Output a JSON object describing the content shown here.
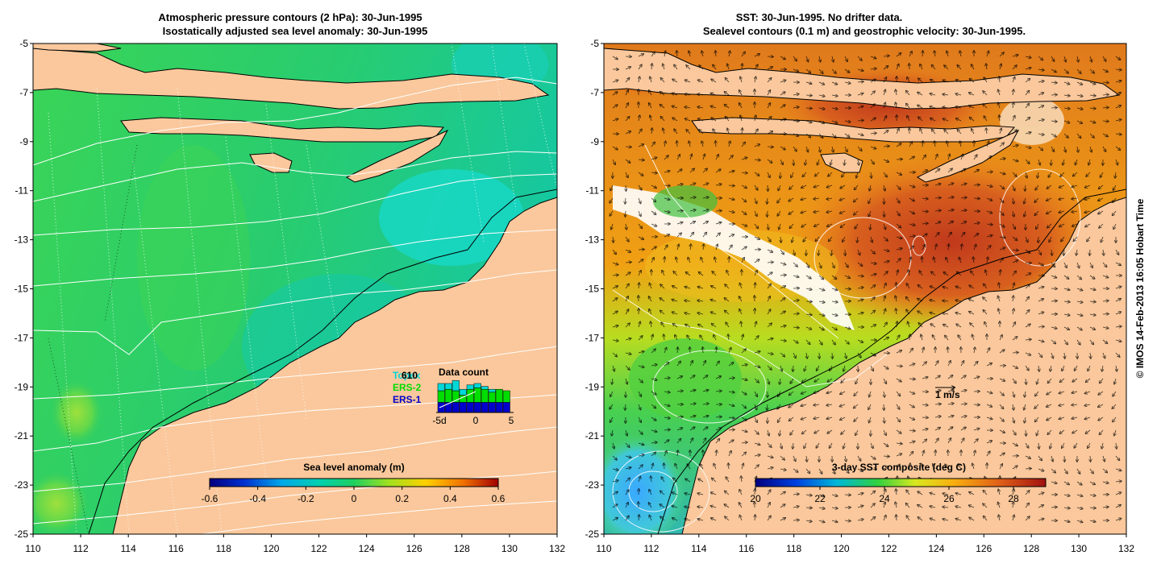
{
  "left_panel": {
    "title_line1": "Atmospheric pressure contours (2 hPa): 30-Jun-1995",
    "title_line2": "Isostatically adjusted sea level anomaly: 30-Jun-1995",
    "colorbar": {
      "title": "Sea level anomaly (m)",
      "ticks": [
        "-0.6",
        "-0.4",
        "-0.2",
        "0",
        "0.2",
        "0.4",
        "0.6"
      ],
      "range": [
        -0.6,
        0.6
      ]
    },
    "inset": {
      "title": "Data count",
      "count": "610",
      "legend": [
        {
          "name": "TOPEX",
          "label": "Topex",
          "color": "#00d8d8"
        },
        {
          "name": "ERS-2",
          "label": "ERS-2",
          "color": "#00dd00"
        },
        {
          "name": "ERS-1",
          "label": "ERS-1",
          "color": "#0000cc"
        }
      ],
      "x_ticks": [
        "-5d",
        "0",
        "5"
      ],
      "bars": [
        {
          "day": -5,
          "ers1": 0.35,
          "ers2": 0.4,
          "topex": 0.25
        },
        {
          "day": -4,
          "ers1": 0.35,
          "ers2": 0.45,
          "topex": 0.2
        },
        {
          "day": -3,
          "ers1": 0.35,
          "ers2": 0.4,
          "topex": 0.35
        },
        {
          "day": -2,
          "ers1": 0.35,
          "ers2": 0.25,
          "topex": 0.2
        },
        {
          "day": -1,
          "ers1": 0.35,
          "ers2": 0.45,
          "topex": 0.15
        },
        {
          "day": 0,
          "ers1": 0.35,
          "ers2": 0.5,
          "topex": 0.15
        },
        {
          "day": 1,
          "ers1": 0.35,
          "ers2": 0.45,
          "topex": 0.1
        },
        {
          "day": 2,
          "ers1": 0.35,
          "ers2": 0.35,
          "topex": 0.1
        },
        {
          "day": 3,
          "ers1": 0.35,
          "ers2": 0.45,
          "topex": 0.0
        },
        {
          "day": 4,
          "ers1": 0.35,
          "ers2": 0.4,
          "topex": 0.0
        }
      ]
    }
  },
  "right_panel": {
    "title_line1": "SST: 30-Jun-1995. No drifter data.",
    "title_line2": "Sealevel contours (0.1 m) and geostrophic velocity: 30-Jun-1995.",
    "colorbar": {
      "title": "3-day SST composite (deg C)",
      "ticks": [
        "20",
        "22",
        "24",
        "26",
        "28"
      ],
      "range": [
        20,
        29
      ]
    },
    "velocity_scale_label": "1 m/s"
  },
  "axes": {
    "lon_range": [
      110,
      132
    ],
    "lat_range": [
      -25,
      -5
    ],
    "x_ticks": [
      "110",
      "112",
      "114",
      "116",
      "118",
      "120",
      "122",
      "124",
      "126",
      "128",
      "130",
      "132"
    ],
    "y_ticks": [
      "-5",
      "-7",
      "-9",
      "-11",
      "-13",
      "-15",
      "-17",
      "-19",
      "-21",
      "-23",
      "-25"
    ]
  },
  "credit": "© IMOS 14-Feb-2013 16:05 Hobart Time",
  "colors": {
    "land": "#fac89c",
    "ocean_left": "#1ec88c",
    "ocean_right": "#ec8c1e"
  }
}
